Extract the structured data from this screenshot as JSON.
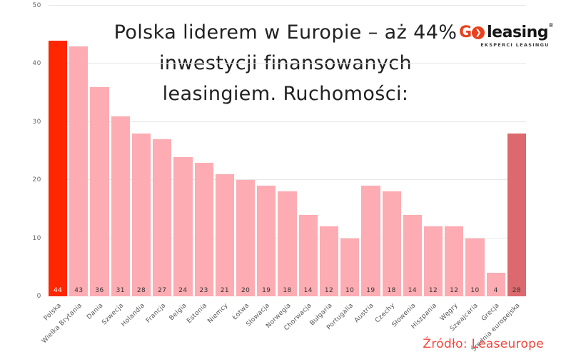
{
  "title_lines": [
    "Polska liderem w Europie – aż 44%",
    "inwestycji finansowanych",
    "leasingiem. Ruchomości:"
  ],
  "logo": {
    "g": "G",
    "chevron": "❯",
    "word": "leasing",
    "registered": "®",
    "tagline": "EKSPERCI LEASINGU",
    "red": "#e8411c"
  },
  "source": "Źródło: Leaseurope",
  "chart_data": {
    "type": "bar",
    "title": "Polska liderem w Europie – aż 44% inwestycji finansowanych leasingiem. Ruchomości:",
    "categories": [
      "Polska",
      "Wielka Brytania",
      "Dania",
      "Szwecja",
      "Holandia",
      "Francja",
      "Belgia",
      "Estonia",
      "Niemcy",
      "Łotwa",
      "Słowacja",
      "Norwegia",
      "Chorwacja",
      "Bułgaria",
      "Portugalia",
      "Austria",
      "Czechy",
      "Słowenia",
      "Hiszpania",
      "Węgry",
      "Szwajcaria",
      "Grecja",
      "Średnia europejska"
    ],
    "values": [
      44,
      43,
      36,
      31,
      28,
      27,
      24,
      23,
      21,
      20,
      19,
      18,
      14,
      12,
      10,
      19,
      18,
      14,
      12,
      12,
      10,
      4,
      28
    ],
    "xlabel": "",
    "ylabel": "",
    "ylim": [
      0,
      50
    ],
    "yticks": [
      0,
      10,
      20,
      30,
      40,
      50
    ],
    "grid": true,
    "legend": false,
    "highlight_index": 0,
    "average_index": 22,
    "colors": {
      "highlight": "#ff2600",
      "default": "#fcacb2",
      "average": "#dc696d"
    },
    "value_label_color": "#333333",
    "value_label_color_highlight": "#ffffff",
    "source": "Źródło: Leaseurope"
  }
}
